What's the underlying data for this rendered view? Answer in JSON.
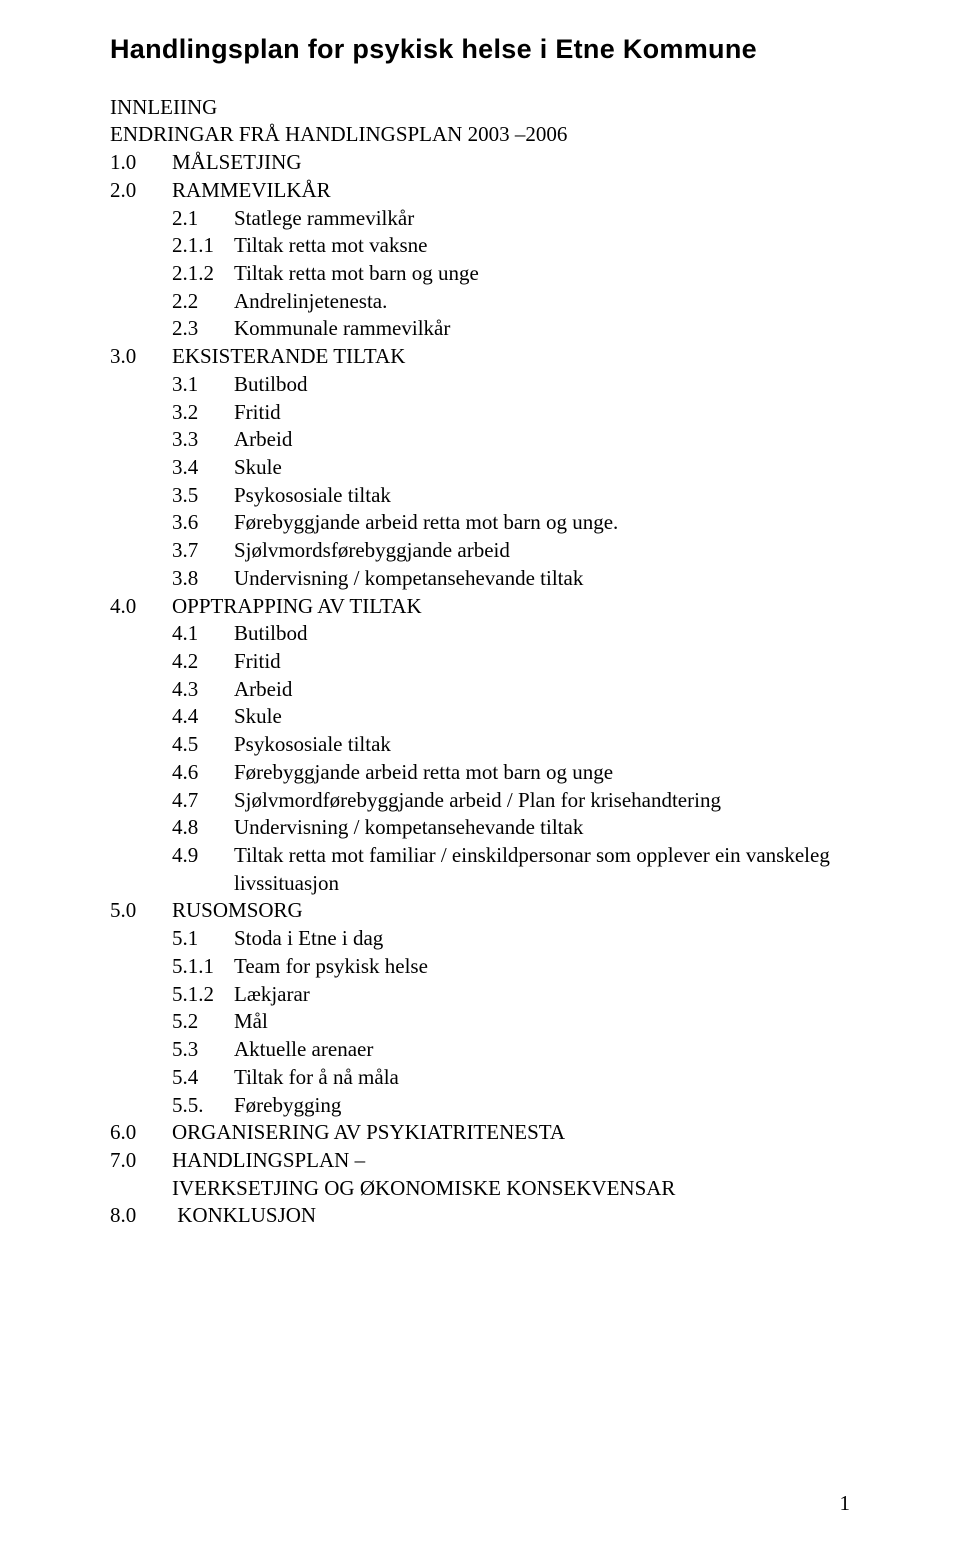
{
  "title": "Handlingsplan for psykisk helse i Etne Kommune",
  "lines": [
    {
      "level": 0,
      "num": "",
      "text": "INNLEIING"
    },
    {
      "level": 0,
      "num": "",
      "text": "ENDRINGAR FRÅ HANDLINGSPLAN 2003 –2006"
    },
    {
      "level": 0,
      "num": "1.0",
      "text": "MÅLSETJING"
    },
    {
      "level": 0,
      "num": "2.0",
      "text": "RAMMEVILKÅR"
    },
    {
      "level": 1,
      "num": "2.1",
      "text": "Statlege rammevilkår"
    },
    {
      "level": 1,
      "num": "2.1.1",
      "text": "Tiltak retta mot vaksne"
    },
    {
      "level": 1,
      "num": "2.1.2",
      "text": "Tiltak retta mot barn og unge"
    },
    {
      "level": 1,
      "num": "2.2",
      "text": "Andrelinjetenesta."
    },
    {
      "level": 1,
      "num": "2.3",
      "text": "Kommunale rammevilkår"
    },
    {
      "level": 0,
      "num": "3.0",
      "text": "EKSISTERANDE TILTAK"
    },
    {
      "level": 1,
      "num": "3.1",
      "text": "Butilbod"
    },
    {
      "level": 1,
      "num": "3.2",
      "text": "Fritid"
    },
    {
      "level": 1,
      "num": "3.3",
      "text": "Arbeid"
    },
    {
      "level": 1,
      "num": "3.4",
      "text": "Skule"
    },
    {
      "level": 1,
      "num": "3.5",
      "text": "Psykososiale tiltak"
    },
    {
      "level": 1,
      "num": "3.6",
      "text": "Førebyggjande arbeid retta mot barn og unge."
    },
    {
      "level": 1,
      "num": "3.7",
      "text": "Sjølvmordsførebyggjande arbeid"
    },
    {
      "level": 1,
      "num": "3.8",
      "text": "Undervisning / kompetansehevande tiltak"
    },
    {
      "level": 0,
      "num": "4.0",
      "text": "OPPTRAPPING AV TILTAK"
    },
    {
      "level": 1,
      "num": "4.1",
      "text": "Butilbod"
    },
    {
      "level": 1,
      "num": "4.2",
      "text": "Fritid"
    },
    {
      "level": 1,
      "num": "4.3",
      "text": "Arbeid"
    },
    {
      "level": 1,
      "num": "4.4",
      "text": "Skule"
    },
    {
      "level": 1,
      "num": "4.5",
      "text": "Psykososiale tiltak"
    },
    {
      "level": 1,
      "num": "4.6",
      "text": "Førebyggjande arbeid retta mot barn og unge"
    },
    {
      "level": 1,
      "num": "4.7",
      "text": "Sjølvmordførebyggjande arbeid / Plan for krisehandtering"
    },
    {
      "level": 1,
      "num": "4.8",
      "text": "Undervisning / kompetansehevande tiltak"
    },
    {
      "level": 1,
      "num": "4.9",
      "text": "Tiltak retta mot familiar / einskildpersonar som opplever ein vanskeleg"
    },
    {
      "level": 1,
      "num": "",
      "text": "livssituasjon",
      "textIndent": true
    },
    {
      "level": 0,
      "num": "5.0",
      "text": "RUSOMSORG"
    },
    {
      "level": 1,
      "num": "5.1",
      "text": "Stoda i Etne i dag"
    },
    {
      "level": 1,
      "num": "5.1.1",
      "text": "Team for psykisk helse"
    },
    {
      "level": 1,
      "num": "5.1.2",
      "text": "Lækjarar"
    },
    {
      "level": 1,
      "num": "5.2",
      "text": "Mål"
    },
    {
      "level": 1,
      "num": "5.3",
      "text": "Aktuelle arenaer"
    },
    {
      "level": 1,
      "num": "5.4",
      "text": "Tiltak for å nå måla"
    },
    {
      "level": 1,
      "num": "5.5.",
      "text": "Førebygging"
    },
    {
      "level": 0,
      "num": "6.0",
      "text": "ORGANISERING AV PSYKIATRITENESTA"
    },
    {
      "level": 0,
      "num": "7.0",
      "text": "HANDLINGSPLAN –"
    },
    {
      "level": 0,
      "num": "",
      "text": "IVERKSETJING OG ØKONOMISKE KONSEKVENSAR",
      "textIndent": true
    },
    {
      "level": 0,
      "num": "8.0",
      "text": " KONKLUSJON"
    }
  ],
  "pageNumber": "1",
  "colors": {
    "bg": "#ffffff",
    "text": "#000000"
  },
  "typography": {
    "title_fontsize": 27,
    "body_fontsize": 21
  }
}
